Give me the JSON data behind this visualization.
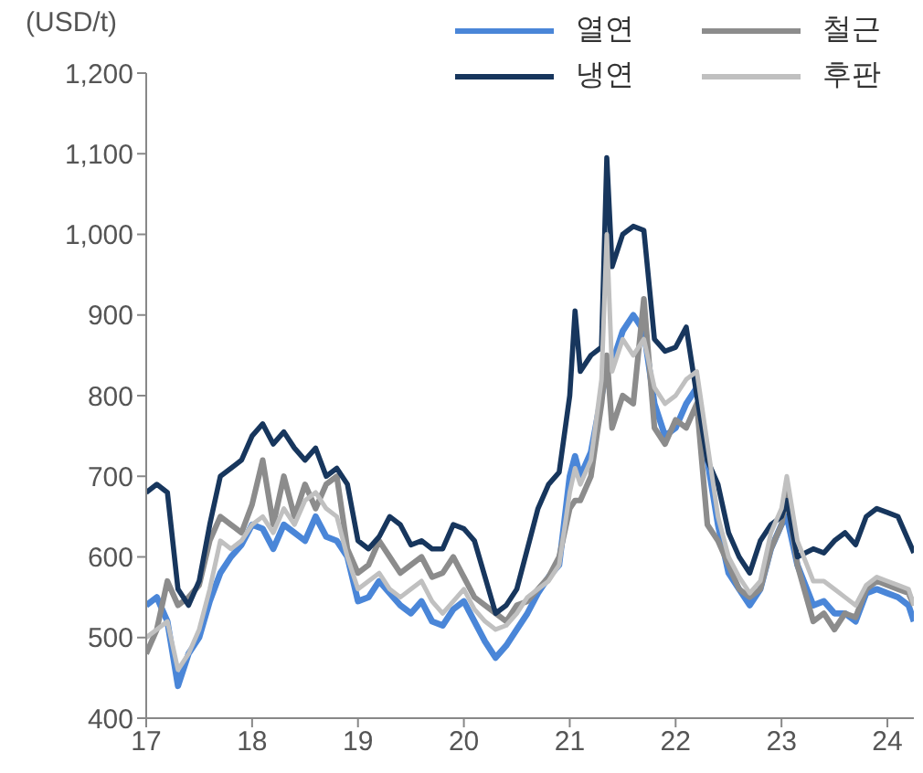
{
  "chart_data": {
    "type": "line",
    "ylabel": "(USD/t)",
    "legend": "top right",
    "grid": false,
    "marker": "none",
    "line_style": "solid",
    "xlim": [
      17,
      24.25
    ],
    "xticks": [
      17,
      18,
      19,
      20,
      21,
      22,
      23,
      24
    ],
    "ylim": [
      400,
      1200
    ],
    "yticks": [
      400,
      500,
      600,
      700,
      800,
      900,
      {
        "value": 1000,
        "label": "1,000"
      },
      {
        "value": 1100,
        "label": "1,100"
      },
      {
        "value": 1200,
        "label": "1,200"
      }
    ],
    "x": [
      17.0,
      17.1,
      17.2,
      17.3,
      17.4,
      17.5,
      17.6,
      17.7,
      17.8,
      17.9,
      18.0,
      18.1,
      18.2,
      18.3,
      18.4,
      18.5,
      18.6,
      18.7,
      18.8,
      18.9,
      19.0,
      19.1,
      19.2,
      19.3,
      19.4,
      19.5,
      19.6,
      19.7,
      19.8,
      19.9,
      20.0,
      20.1,
      20.2,
      20.3,
      20.4,
      20.5,
      20.6,
      20.7,
      20.8,
      20.9,
      21.0,
      21.05,
      21.1,
      21.2,
      21.3,
      21.35,
      21.4,
      21.5,
      21.6,
      21.7,
      21.8,
      21.9,
      22.0,
      22.1,
      22.2,
      22.3,
      22.4,
      22.5,
      22.6,
      22.7,
      22.8,
      22.9,
      23.0,
      23.05,
      23.15,
      23.3,
      23.4,
      23.5,
      23.6,
      23.7,
      23.8,
      23.9,
      24.0,
      24.1,
      24.2,
      24.25
    ],
    "series": [
      {
        "name": "열연",
        "color": "#4a86d8",
        "values": [
          540,
          550,
          520,
          440,
          480,
          500,
          545,
          580,
          600,
          615,
          640,
          635,
          610,
          640,
          630,
          620,
          650,
          625,
          620,
          600,
          545,
          550,
          570,
          555,
          540,
          530,
          545,
          520,
          515,
          535,
          545,
          520,
          495,
          475,
          490,
          510,
          530,
          555,
          575,
          590,
          700,
          725,
          700,
          730,
          800,
          830,
          840,
          880,
          900,
          880,
          790,
          750,
          760,
          790,
          810,
          720,
          640,
          580,
          560,
          540,
          560,
          610,
          640,
          650,
          590,
          540,
          545,
          530,
          530,
          520,
          555,
          560,
          555,
          550,
          540,
          520
        ]
      },
      {
        "name": "철근",
        "color": "#8c8c8c",
        "values": [
          480,
          510,
          570,
          540,
          550,
          565,
          620,
          650,
          640,
          630,
          665,
          720,
          640,
          700,
          650,
          690,
          660,
          690,
          700,
          610,
          580,
          590,
          620,
          600,
          580,
          590,
          600,
          575,
          580,
          600,
          575,
          550,
          540,
          530,
          520,
          540,
          545,
          560,
          575,
          600,
          660,
          670,
          670,
          700,
          790,
          850,
          760,
          800,
          790,
          920,
          760,
          740,
          770,
          760,
          790,
          640,
          620,
          590,
          560,
          550,
          560,
          610,
          640,
          680,
          590,
          520,
          530,
          510,
          530,
          525,
          560,
          570,
          565,
          560,
          555,
          540
        ]
      },
      {
        "name": "냉연",
        "color": "#17365d",
        "values": [
          680,
          690,
          680,
          560,
          540,
          570,
          640,
          700,
          710,
          720,
          750,
          765,
          740,
          755,
          735,
          720,
          735,
          700,
          710,
          690,
          620,
          610,
          625,
          650,
          640,
          615,
          620,
          610,
          610,
          640,
          635,
          620,
          575,
          530,
          540,
          560,
          610,
          660,
          690,
          705,
          800,
          905,
          830,
          850,
          860,
          1095,
          960,
          1000,
          1010,
          1005,
          870,
          855,
          860,
          885,
          800,
          720,
          690,
          630,
          600,
          580,
          620,
          640,
          650,
          670,
          600,
          610,
          605,
          620,
          630,
          615,
          650,
          660,
          655,
          650,
          620,
          605
        ]
      },
      {
        "name": "후판",
        "color": "#c0c0c0",
        "values": [
          500,
          510,
          520,
          460,
          480,
          510,
          560,
          620,
          610,
          620,
          640,
          650,
          630,
          660,
          640,
          670,
          680,
          660,
          650,
          600,
          560,
          570,
          580,
          560,
          550,
          560,
          570,
          545,
          530,
          545,
          560,
          535,
          520,
          510,
          515,
          530,
          550,
          560,
          570,
          590,
          680,
          710,
          690,
          720,
          820,
          1000,
          830,
          870,
          850,
          870,
          810,
          790,
          800,
          820,
          830,
          740,
          650,
          600,
          575,
          555,
          570,
          630,
          660,
          700,
          620,
          570,
          570,
          560,
          550,
          540,
          565,
          575,
          570,
          565,
          560,
          540
        ]
      }
    ]
  }
}
